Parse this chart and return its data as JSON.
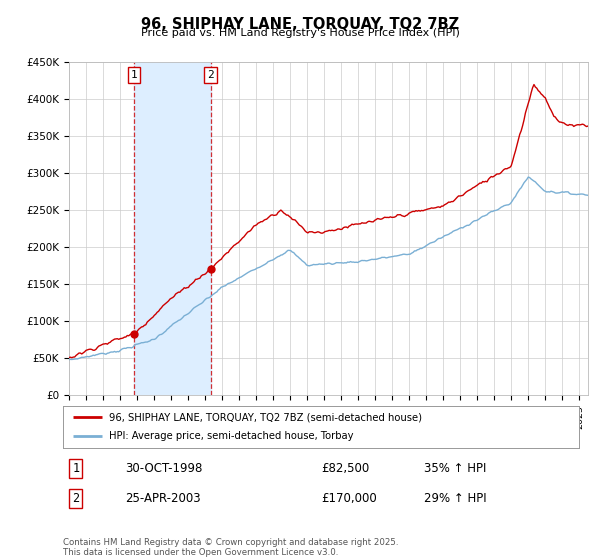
{
  "title": "96, SHIPHAY LANE, TORQUAY, TQ2 7BZ",
  "subtitle": "Price paid vs. HM Land Registry's House Price Index (HPI)",
  "ylim": [
    0,
    450000
  ],
  "yticks": [
    0,
    50000,
    100000,
    150000,
    200000,
    250000,
    300000,
    350000,
    400000,
    450000
  ],
  "ytick_labels": [
    "£0",
    "£50K",
    "£100K",
    "£150K",
    "£200K",
    "£250K",
    "£300K",
    "£350K",
    "£400K",
    "£450K"
  ],
  "xlim_start": 1995.0,
  "xlim_end": 2025.5,
  "purchase1_date": 1998.83,
  "purchase1_price": 82500,
  "purchase2_date": 2003.32,
  "purchase2_price": 170000,
  "shade_color": "#ddeeff",
  "line1_color": "#cc0000",
  "line2_color": "#7aafd4",
  "legend1": "96, SHIPHAY LANE, TORQUAY, TQ2 7BZ (semi-detached house)",
  "legend2": "HPI: Average price, semi-detached house, Torbay",
  "transaction1_date": "30-OCT-1998",
  "transaction1_price": "£82,500",
  "transaction1_hpi": "35% ↑ HPI",
  "transaction2_date": "25-APR-2003",
  "transaction2_price": "£170,000",
  "transaction2_hpi": "29% ↑ HPI",
  "footer": "Contains HM Land Registry data © Crown copyright and database right 2025.\nThis data is licensed under the Open Government Licence v3.0.",
  "background_color": "#ffffff",
  "grid_color": "#cccccc"
}
